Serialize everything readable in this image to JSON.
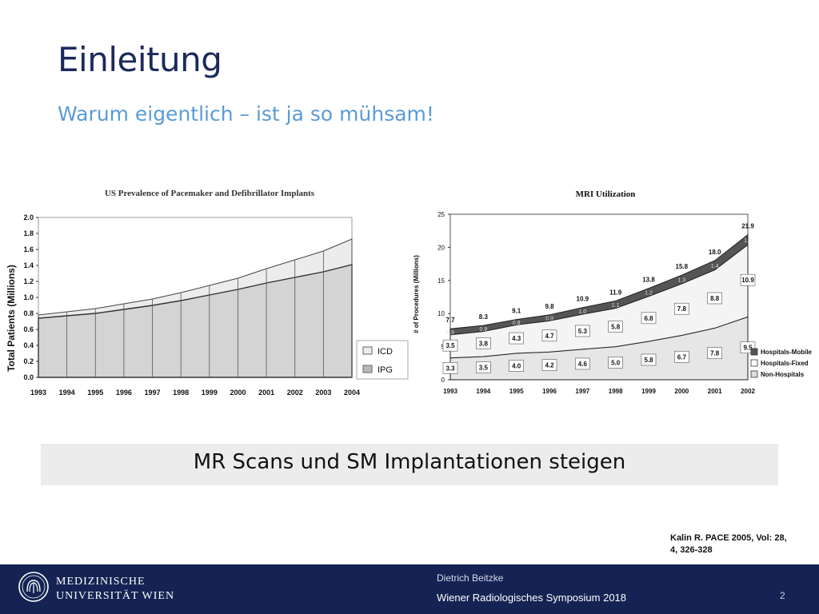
{
  "slide": {
    "title": "Einleitung",
    "subtitle": "Warum eigentlich – ist ja so mühsam!",
    "banner": "MR Scans und SM Implantationen steigen",
    "citation_line1": "Kalin R. PACE 2005, Vol: 28,",
    "citation_line2": "4, 326-328"
  },
  "footer": {
    "university_line1": "MEDIZINISCHE",
    "university_line2": "UNIVERSITÄT WIEN",
    "author": "Dietrich Beitzke",
    "event": "Wiener Radiologisches Symposium 2018",
    "page": "2",
    "logo_icon": "university-seal-icon"
  },
  "colors": {
    "title": "#1b2a5a",
    "subtitle": "#5b9bd5",
    "footer_bg": "#142353",
    "banner_bg": "#ececec"
  },
  "chart_data": [
    {
      "type": "area",
      "title": "US Prevalence of Pacemaker and Defibrillator Implants",
      "ylabel": "Total Patients (Millions)",
      "x": [
        "1993",
        "1994",
        "1995",
        "1996",
        "1997",
        "1998",
        "1999",
        "2000",
        "2001",
        "2002",
        "2003",
        "2004"
      ],
      "yticks": [
        "0.0",
        "0.2",
        "0.4",
        "0.6",
        "0.8",
        "1.0",
        "1.2",
        "1.4",
        "1.6",
        "1.8",
        "2.0"
      ],
      "ylim": [
        0,
        2.0
      ],
      "stacked": true,
      "series": [
        {
          "name": "IPG",
          "values": [
            0.74,
            0.77,
            0.8,
            0.85,
            0.9,
            0.96,
            1.03,
            1.1,
            1.18,
            1.25,
            1.32,
            1.41
          ],
          "color": "#d4d4d4"
        },
        {
          "name": "ICD",
          "values": [
            0.04,
            0.05,
            0.06,
            0.07,
            0.08,
            0.1,
            0.12,
            0.14,
            0.18,
            0.22,
            0.26,
            0.32
          ],
          "color": "#ececec"
        }
      ],
      "legend": "bottom-right",
      "grid": false
    },
    {
      "type": "area",
      "title": "MRI Utilization",
      "ylabel": "# of Procedures (Millions)",
      "x": [
        "1993",
        "1994",
        "1995",
        "1996",
        "1997",
        "1998",
        "1999",
        "2000",
        "2001",
        "2002"
      ],
      "yticks": [
        "0",
        "5",
        "10",
        "15",
        "20",
        "25"
      ],
      "ylim": [
        0,
        25
      ],
      "stacked": true,
      "series": [
        {
          "name": "Non-Hospitals",
          "values": [
            3.3,
            3.5,
            4.0,
            4.2,
            4.6,
            5.0,
            5.8,
            6.7,
            7.8,
            9.5
          ],
          "labels": [
            "3.3",
            "3.5",
            "4.0",
            "4.2",
            "4.6",
            "5.0",
            "5.8",
            "6.7",
            "7.8",
            "9.5"
          ],
          "color": "#e6e6e6"
        },
        {
          "name": "Hospitals-Fixed",
          "values": [
            3.5,
            3.8,
            4.3,
            4.7,
            5.3,
            5.8,
            6.8,
            7.8,
            8.8,
            10.9
          ],
          "labels": [
            "3.5",
            "3.8",
            "4.3",
            "4.7",
            "5.3",
            "5.8",
            "6.8",
            "7.8",
            "8.8",
            "10.9"
          ],
          "color": "#f4f4f4"
        },
        {
          "name": "Hospitals-Mobile",
          "values": [
            0.9,
            0.9,
            0.8,
            0.9,
            1.0,
            1.1,
            1.2,
            1.3,
            1.4,
            1.5
          ],
          "labels": [
            "0.9",
            "0.9",
            "0.8",
            "0.9",
            "1.0",
            "1.1",
            "1.2",
            "1.3",
            "1.4",
            "1.5"
          ],
          "color": "#555555"
        }
      ],
      "totals": [
        "7.7",
        "8.3",
        "9.1",
        "9.8",
        "10.9",
        "11.9",
        "13.8",
        "15.8",
        "18.0",
        "21.9"
      ],
      "legend": "bottom-right",
      "grid": false
    }
  ]
}
